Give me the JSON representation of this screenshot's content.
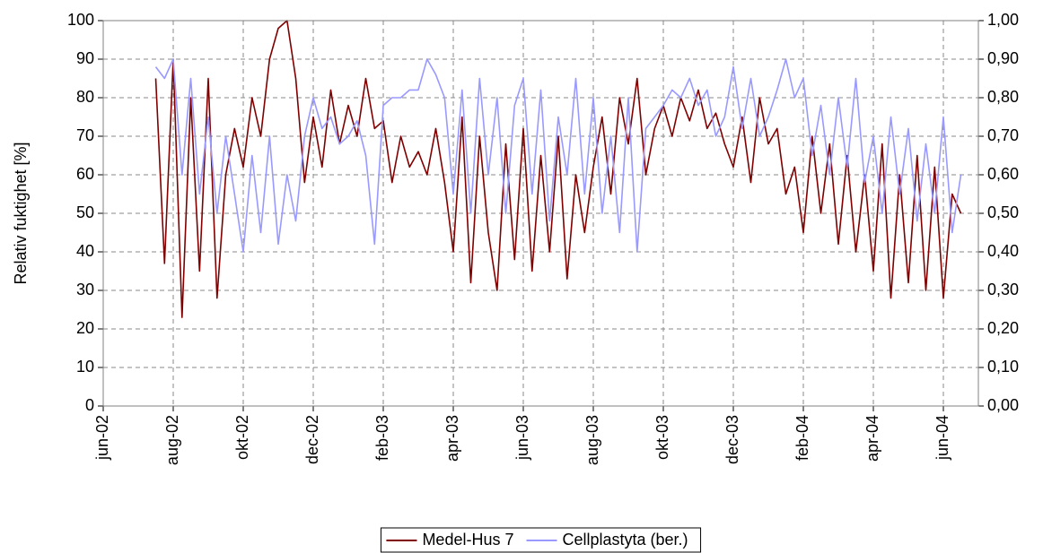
{
  "chart_data": {
    "type": "line",
    "y_label": "Relativ fuktighet [%]",
    "x": [
      1.5,
      1.75,
      2,
      2.25,
      2.5,
      2.75,
      3,
      3.25,
      3.5,
      3.75,
      4,
      4.25,
      4.5,
      4.75,
      5,
      5.25,
      5.5,
      5.75,
      6,
      6.25,
      6.5,
      6.75,
      7,
      7.25,
      7.5,
      7.75,
      8,
      8.25,
      8.5,
      8.75,
      9,
      9.25,
      9.5,
      9.75,
      10,
      10.25,
      10.5,
      10.75,
      11,
      11.25,
      11.5,
      11.75,
      12,
      12.25,
      12.5,
      12.75,
      13,
      13.25,
      13.5,
      13.75,
      14,
      14.25,
      14.5,
      14.75,
      15,
      15.25,
      15.5,
      15.75,
      16,
      16.25,
      16.5,
      16.75,
      17,
      17.25,
      17.5,
      17.75,
      18,
      18.25,
      18.5,
      18.75,
      19,
      19.25,
      19.5,
      19.75,
      20,
      20.25,
      20.5,
      20.75,
      21,
      21.25,
      21.5,
      21.75,
      22,
      22.25,
      22.5,
      22.75,
      23,
      23.25,
      23.5,
      23.75,
      24,
      24.25,
      24.5
    ],
    "series": [
      {
        "name": "Medel-Hus 7",
        "color": "#800000",
        "axis": "y",
        "values": [
          85,
          37,
          90,
          23,
          80,
          35,
          85,
          28,
          60,
          72,
          62,
          80,
          70,
          90,
          98,
          100,
          85,
          58,
          75,
          62,
          82,
          68,
          78,
          70,
          85,
          72,
          74,
          58,
          70,
          62,
          66,
          60,
          72,
          58,
          40,
          75,
          32,
          70,
          45,
          30,
          68,
          38,
          72,
          35,
          65,
          40,
          70,
          33,
          60,
          45,
          62,
          75,
          55,
          80,
          68,
          85,
          60,
          72,
          78,
          70,
          80,
          74,
          82,
          72,
          76,
          68,
          62,
          75,
          58,
          80,
          68,
          72,
          55,
          62,
          45,
          70,
          50,
          68,
          42,
          65,
          40,
          60,
          35,
          68,
          28,
          60,
          32,
          65,
          30,
          62,
          28,
          55,
          50
        ]
      },
      {
        "name": "Cellplastyta (ber.)",
        "color": "#9999ff",
        "axis": "y2",
        "values": [
          0.88,
          0.85,
          0.9,
          0.6,
          0.85,
          0.55,
          0.75,
          0.5,
          0.7,
          0.55,
          0.4,
          0.65,
          0.45,
          0.7,
          0.42,
          0.6,
          0.48,
          0.7,
          0.8,
          0.72,
          0.75,
          0.68,
          0.7,
          0.74,
          0.65,
          0.42,
          0.78,
          0.8,
          0.8,
          0.82,
          0.82,
          0.9,
          0.86,
          0.8,
          0.55,
          0.82,
          0.5,
          0.85,
          0.6,
          0.8,
          0.5,
          0.78,
          0.85,
          0.55,
          0.82,
          0.48,
          0.75,
          0.6,
          0.85,
          0.55,
          0.8,
          0.5,
          0.7,
          0.45,
          0.8,
          0.4,
          0.72,
          0.75,
          0.78,
          0.82,
          0.8,
          0.85,
          0.78,
          0.82,
          0.7,
          0.75,
          0.88,
          0.72,
          0.85,
          0.7,
          0.75,
          0.82,
          0.9,
          0.8,
          0.85,
          0.65,
          0.78,
          0.6,
          0.8,
          0.62,
          0.85,
          0.58,
          0.7,
          0.5,
          0.75,
          0.55,
          0.72,
          0.48,
          0.68,
          0.5,
          0.75,
          0.45,
          0.6
        ]
      }
    ],
    "xlim": [
      0,
      25
    ],
    "xticks": [
      {
        "value": 0,
        "label": "jun-02"
      },
      {
        "value": 2,
        "label": "aug-02"
      },
      {
        "value": 4,
        "label": "okt-02"
      },
      {
        "value": 6,
        "label": "dec-02"
      },
      {
        "value": 8,
        "label": "feb-03"
      },
      {
        "value": 10,
        "label": "apr-03"
      },
      {
        "value": 12,
        "label": "jun-03"
      },
      {
        "value": 14,
        "label": "aug-03"
      },
      {
        "value": 16,
        "label": "okt-03"
      },
      {
        "value": 18,
        "label": "dec-03"
      },
      {
        "value": 20,
        "label": "feb-04"
      },
      {
        "value": 22,
        "label": "apr-04"
      },
      {
        "value": 24,
        "label": "jun-04"
      }
    ],
    "ylim": [
      0,
      100
    ],
    "yticks": [
      0,
      10,
      20,
      30,
      40,
      50,
      60,
      70,
      80,
      90,
      100
    ],
    "y2lim": [
      0,
      1
    ],
    "y2ticks": [
      {
        "value": 0,
        "label": "0,00"
      },
      {
        "value": 0.1,
        "label": "0,10"
      },
      {
        "value": 0.2,
        "label": "0,20"
      },
      {
        "value": 0.3,
        "label": "0,30"
      },
      {
        "value": 0.4,
        "label": "0,40"
      },
      {
        "value": 0.5,
        "label": "0,50"
      },
      {
        "value": 0.6,
        "label": "0,60"
      },
      {
        "value": 0.7,
        "label": "0,70"
      },
      {
        "value": 0.8,
        "label": "0,80"
      },
      {
        "value": 0.9,
        "label": "0,90"
      },
      {
        "value": 1,
        "label": "1,00"
      }
    ],
    "grid": true,
    "legend": "bottom"
  }
}
